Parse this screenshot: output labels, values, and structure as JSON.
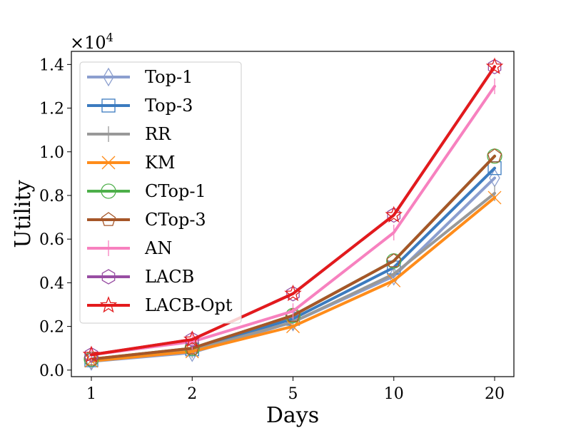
{
  "chart_data": {
    "type": "line",
    "title": "",
    "xlabel": "Days",
    "ylabel": "Utility",
    "y_scale_label": "×10",
    "y_scale_exponent": "4",
    "categories": [
      "1",
      "2",
      "5",
      "10",
      "20"
    ],
    "ylim": [
      -0.03,
      1.46
    ],
    "yticks": [
      0.0,
      0.2,
      0.4,
      0.6,
      0.8,
      1.0,
      1.2,
      1.4
    ],
    "ytick_labels": [
      "0.0",
      "0.2",
      "0.4",
      "0.6",
      "0.8",
      "1.0",
      "1.2",
      "1.4"
    ],
    "legend_position": "top-left",
    "series": [
      {
        "name": "Top-1",
        "color": "#8c9fcf",
        "marker": "thin_diamond",
        "values": [
          0.04,
          0.08,
          0.22,
          0.43,
          0.88
        ]
      },
      {
        "name": "Top-3",
        "color": "#3b7bbf",
        "marker": "square",
        "values": [
          0.045,
          0.095,
          0.235,
          0.47,
          0.925
        ]
      },
      {
        "name": "RR",
        "color": "#999999",
        "marker": "vline",
        "values": [
          0.04,
          0.09,
          0.22,
          0.44,
          0.81
        ]
      },
      {
        "name": "KM",
        "color": "#ff8c1a",
        "marker": "x",
        "values": [
          0.042,
          0.085,
          0.2,
          0.41,
          0.79
        ]
      },
      {
        "name": "CTop-1",
        "color": "#4daf4a",
        "marker": "circle",
        "values": [
          0.05,
          0.1,
          0.25,
          0.5,
          0.98
        ]
      },
      {
        "name": "CTop-3",
        "color": "#a65628",
        "marker": "pentagon",
        "values": [
          0.05,
          0.1,
          0.25,
          0.5,
          0.98
        ]
      },
      {
        "name": "AN",
        "color": "#f781bf",
        "marker": "vline",
        "values": [
          0.07,
          0.13,
          0.27,
          0.63,
          1.3
        ]
      },
      {
        "name": "LACB",
        "color": "#984ea3",
        "marker": "hexagon",
        "values": [
          0.07,
          0.14,
          0.35,
          0.71,
          1.39
        ]
      },
      {
        "name": "LACB-Opt",
        "color": "#e31a1c",
        "marker": "star",
        "values": [
          0.07,
          0.14,
          0.35,
          0.71,
          1.39
        ]
      }
    ]
  }
}
